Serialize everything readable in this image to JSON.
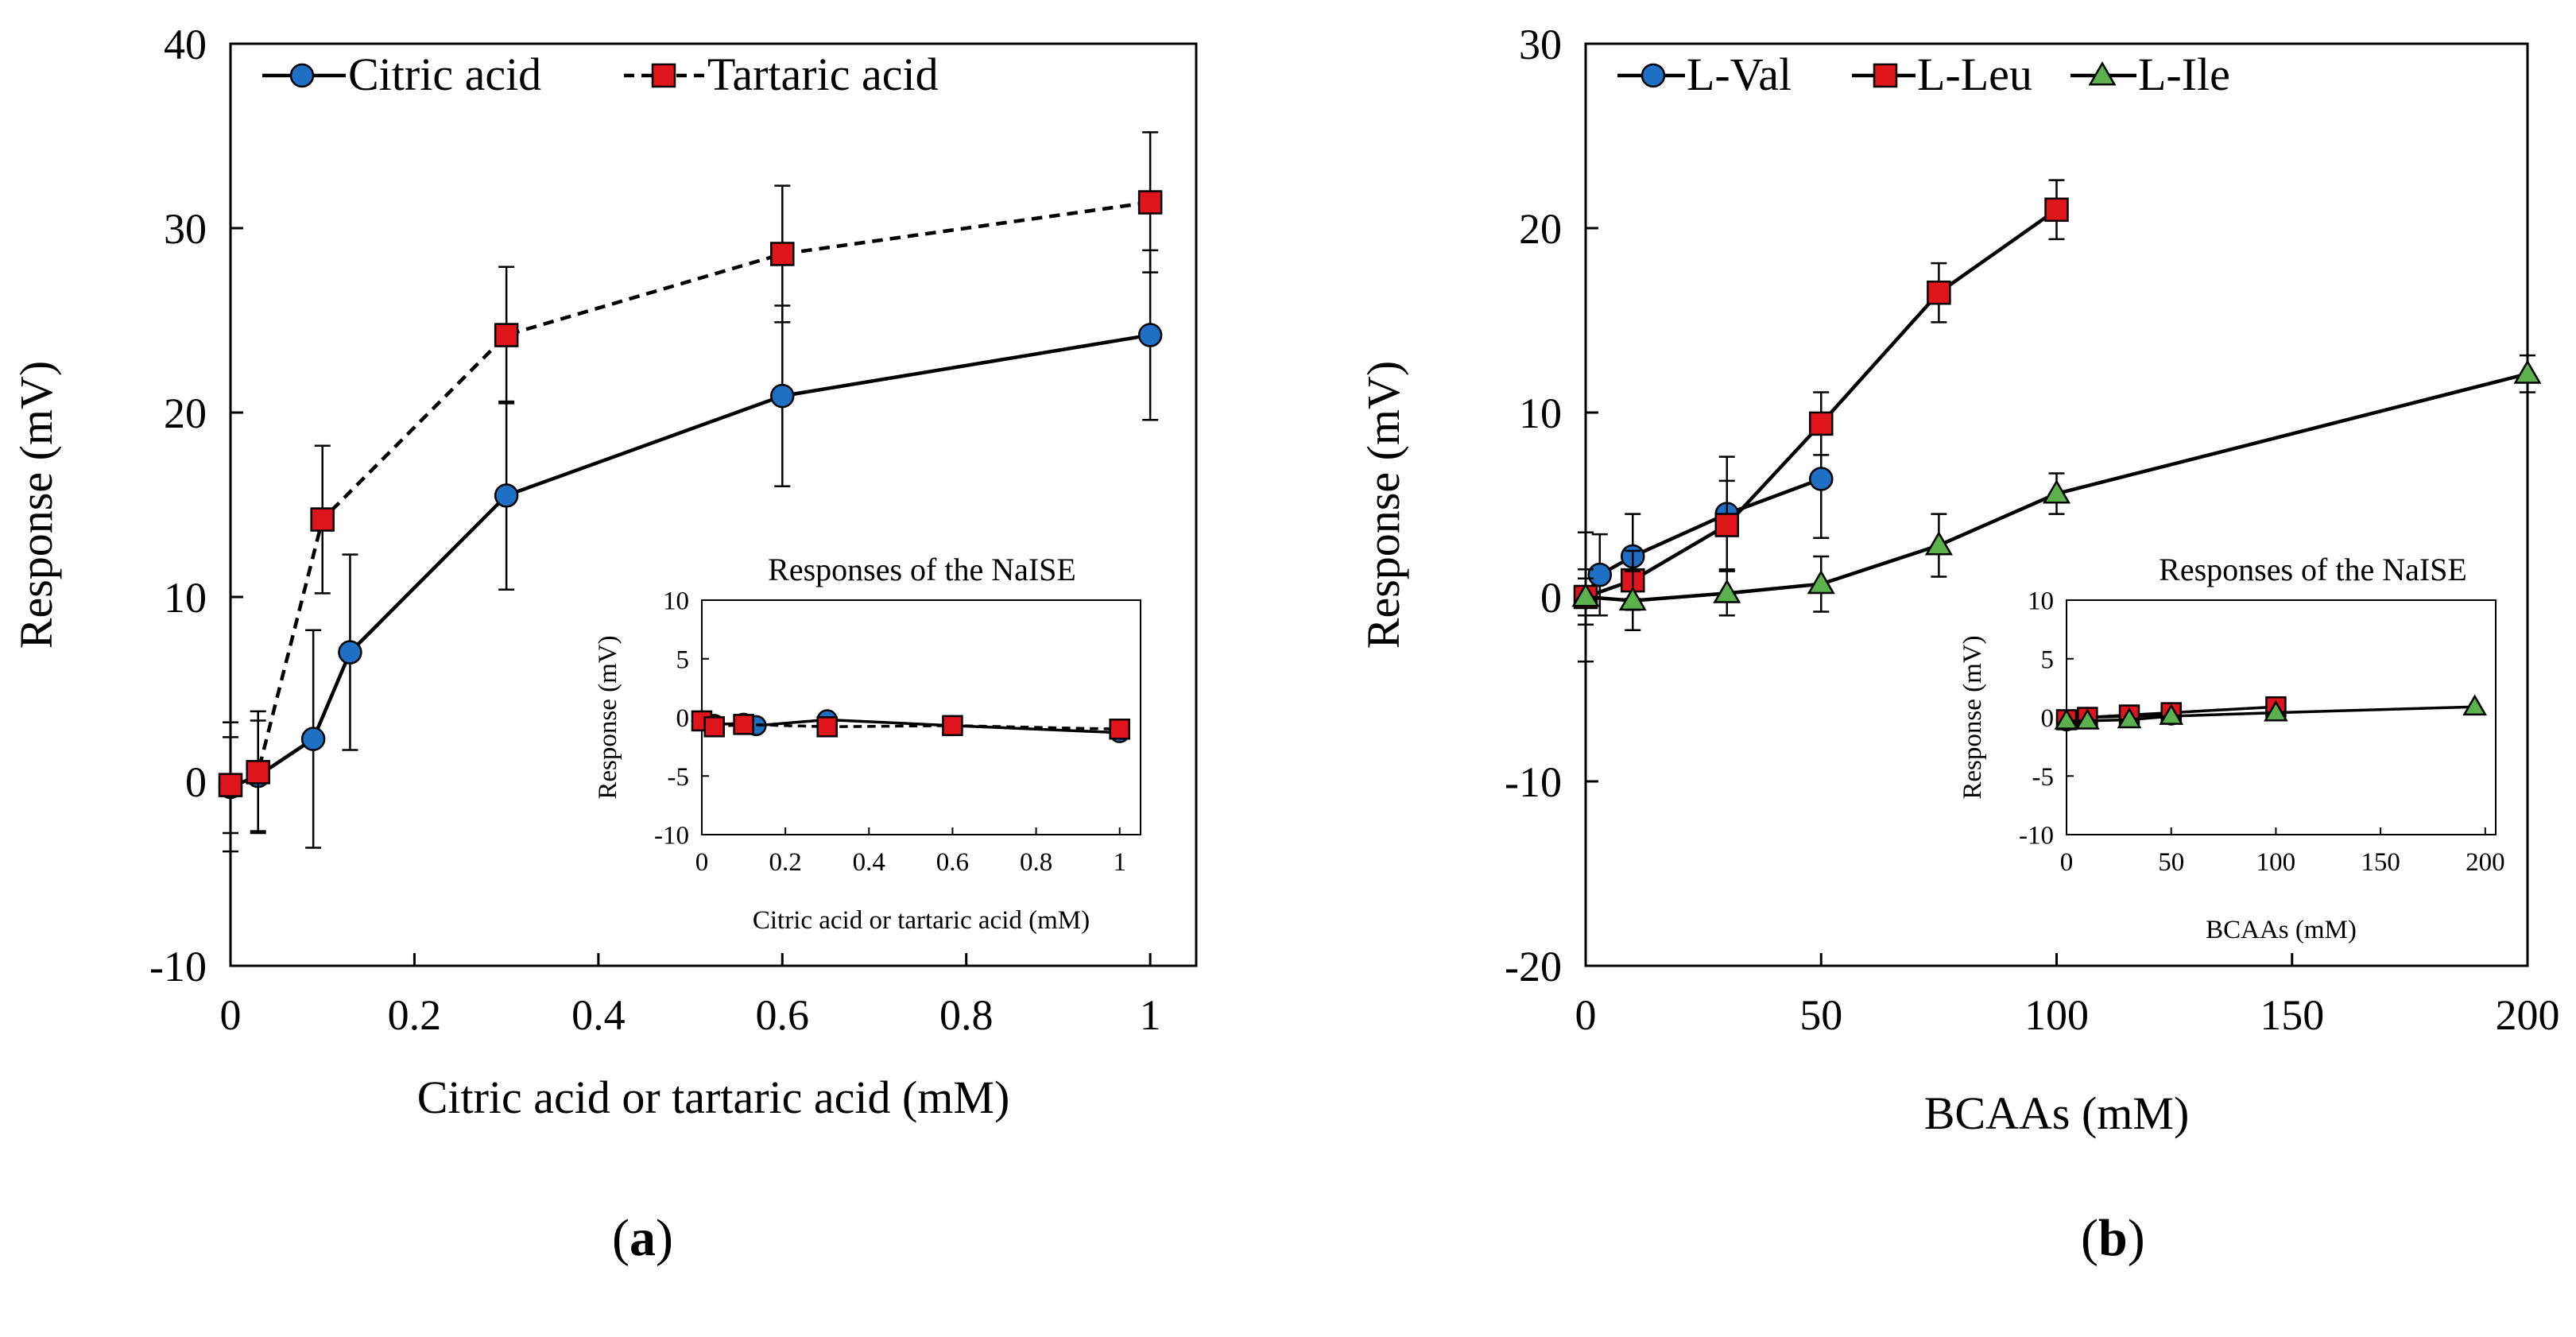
{
  "chart_data": [
    {
      "id": "a",
      "type": "line",
      "panel_label": "a",
      "xlabel": "Citric acid or tartaric acid (mM)",
      "ylabel": "Response (mV)",
      "xlim": [
        0,
        1.05
      ],
      "ylim": [
        -10,
        40
      ],
      "xticks": [
        "0",
        "0.2",
        "0.4",
        "0.6",
        "0.8",
        "1"
      ],
      "xtick_values": [
        0,
        0.2,
        0.4,
        0.6,
        0.8,
        1
      ],
      "yticks": [
        "-10",
        "0",
        "10",
        "20",
        "30",
        "40"
      ],
      "ytick_values": [
        -10,
        0,
        10,
        20,
        30,
        40
      ],
      "legend_position": "top-left",
      "series": [
        {
          "name": "Citric acid",
          "marker": "circle",
          "color": "#1f6fc4",
          "dashed": false,
          "x": [
            0,
            0.03,
            0.09,
            0.13,
            0.3,
            0.6,
            1.0
          ],
          "y": [
            -0.3,
            0.3,
            2.3,
            7.0,
            15.5,
            20.9,
            24.2
          ],
          "err": [
            3.5,
            3.0,
            5.9,
            5.3,
            5.1,
            4.9,
            4.6
          ]
        },
        {
          "name": "Tartaric acid",
          "marker": "square",
          "color": "#e0141b",
          "dashed": true,
          "x": [
            0,
            0.03,
            0.1,
            0.3,
            0.6,
            1.0
          ],
          "y": [
            -0.2,
            0.5,
            14.2,
            24.2,
            28.6,
            31.4
          ],
          "err": [
            2.6,
            3.3,
            4.0,
            3.7,
            3.7,
            3.8
          ]
        }
      ],
      "inset": {
        "title": "Responses of the NaISE",
        "xlabel": "Citric  acid  or tartaric  acid  (mM)",
        "ylabel": "Response  (mV)",
        "xlim": [
          0,
          1.05
        ],
        "ylim": [
          -10,
          10
        ],
        "xticks": [
          "0",
          "0.2",
          "0.4",
          "0.6",
          "0.8",
          "1"
        ],
        "xtick_values": [
          0,
          0.2,
          0.4,
          0.6,
          0.8,
          1
        ],
        "yticks": [
          "-10",
          "-5",
          "0",
          "5",
          "10"
        ],
        "ytick_values": [
          -10,
          -5,
          0,
          5,
          10
        ],
        "series": [
          {
            "name": "Citric acid",
            "marker": "circle",
            "color": "#1f6fc4",
            "dashed": false,
            "x": [
              0,
              0.03,
              0.1,
              0.13,
              0.3,
              0.6,
              1.0
            ],
            "y": [
              -0.3,
              -0.6,
              -0.5,
              -0.7,
              -0.2,
              -0.7,
              -1.3
            ]
          },
          {
            "name": "Tartaric acid",
            "marker": "square",
            "color": "#e0141b",
            "dashed": true,
            "x": [
              0,
              0.03,
              0.1,
              0.3,
              0.6,
              1.0
            ],
            "y": [
              -0.3,
              -0.8,
              -0.6,
              -0.8,
              -0.7,
              -1.0
            ]
          }
        ]
      }
    },
    {
      "id": "b",
      "type": "line",
      "panel_label": "b",
      "xlabel": "BCAAs (mM)",
      "ylabel": "Response (mV)",
      "xlim": [
        0,
        200
      ],
      "ylim": [
        -20,
        30
      ],
      "xticks": [
        "0",
        "50",
        "100",
        "150",
        "200"
      ],
      "xtick_values": [
        0,
        50,
        100,
        150,
        200
      ],
      "yticks": [
        "-20",
        "-10",
        "0",
        "10",
        "20",
        "30"
      ],
      "ytick_values": [
        -20,
        -10,
        0,
        10,
        20,
        30
      ],
      "legend_position": "top-left",
      "series": [
        {
          "name": "L-Val",
          "marker": "circle",
          "color": "#1f6fc4",
          "dashed": false,
          "x": [
            0,
            3,
            10,
            30,
            50
          ],
          "y": [
            0.0,
            1.2,
            2.2,
            4.5,
            6.4
          ],
          "err": [
            3.5,
            2.2,
            2.3,
            3.1,
            3.2
          ]
        },
        {
          "name": "L-Leu",
          "marker": "square",
          "color": "#e0141b",
          "dashed": false,
          "x": [
            0,
            10,
            30,
            50,
            75,
            100
          ],
          "y": [
            0.0,
            0.9,
            3.9,
            9.4,
            16.5,
            21.0
          ],
          "err": [
            1.5,
            1.6,
            2.4,
            1.7,
            1.6,
            1.6
          ]
        },
        {
          "name": "L-Ile",
          "marker": "triangle",
          "color": "#5bb14c",
          "dashed": false,
          "x": [
            0,
            10,
            30,
            50,
            75,
            100,
            200
          ],
          "y": [
            0.0,
            -0.2,
            0.2,
            0.7,
            2.8,
            5.6,
            12.1
          ],
          "err": [
            1.0,
            1.6,
            1.2,
            1.5,
            1.7,
            1.1,
            1.0
          ]
        }
      ],
      "inset": {
        "title": "Responses of the NaISE",
        "xlabel": "BCAAs (mM)",
        "ylabel": "Response  (mV)",
        "xlim": [
          0,
          205
        ],
        "ylim": [
          -10,
          10
        ],
        "xticks": [
          "0",
          "50",
          "100",
          "150",
          "200"
        ],
        "xtick_values": [
          0,
          50,
          100,
          150,
          200
        ],
        "yticks": [
          "-10",
          "-5",
          "0",
          "5",
          "10"
        ],
        "ytick_values": [
          -10,
          -5,
          0,
          5,
          10
        ],
        "series": [
          {
            "name": "L-Val",
            "marker": "circle",
            "color": "#1f6fc4",
            "dashed": false,
            "x": [
              0,
              3,
              10,
              30,
              50
            ],
            "y": [
              -0.3,
              -0.2,
              0.0,
              0.1,
              0.2
            ]
          },
          {
            "name": "L-Leu",
            "marker": "square",
            "color": "#e0141b",
            "dashed": false,
            "x": [
              0,
              10,
              30,
              50,
              100
            ],
            "y": [
              -0.2,
              0.0,
              0.2,
              0.4,
              0.9
            ]
          },
          {
            "name": "L-Ile",
            "marker": "triangle",
            "color": "#5bb14c",
            "dashed": false,
            "x": [
              0,
              10,
              30,
              50,
              100,
              195
            ],
            "y": [
              -0.3,
              -0.3,
              -0.2,
              0.1,
              0.4,
              0.9
            ]
          }
        ]
      }
    }
  ],
  "captions": {
    "a": "a",
    "b": "b"
  }
}
